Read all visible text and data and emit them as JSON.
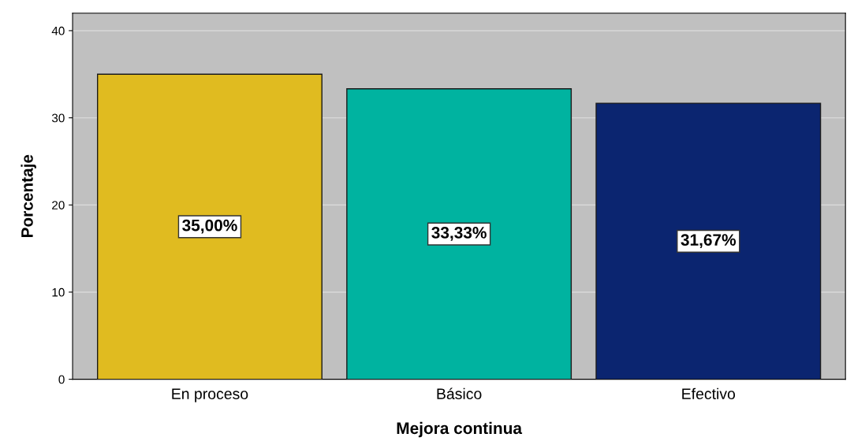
{
  "chart_data": {
    "type": "bar",
    "xlabel": "Mejora continua",
    "ylabel": "Porcentaje",
    "categories": [
      "En proceso",
      "Básico",
      "Efectivo"
    ],
    "values": [
      35.0,
      33.33,
      31.67
    ],
    "colors": [
      "#e0bb20",
      "#00b3a0",
      "#0b2570"
    ],
    "value_labels": [
      "35,00%",
      "33,33%",
      "31,67%"
    ],
    "ylim": [
      0,
      42
    ],
    "yticks": [
      0,
      10,
      20,
      30,
      40
    ],
    "grid": "y"
  }
}
